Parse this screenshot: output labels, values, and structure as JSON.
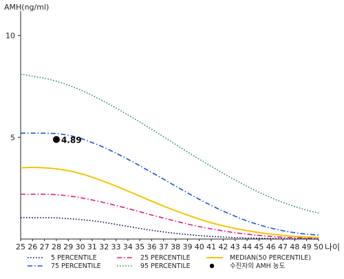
{
  "chart_data": {
    "type": "line",
    "ylabel": "AMH(ng/ml)",
    "xlabel": "나이",
    "x": [
      25,
      26,
      27,
      28,
      29,
      30,
      31,
      32,
      33,
      34,
      35,
      36,
      37,
      38,
      39,
      40,
      41,
      42,
      43,
      44,
      45,
      46,
      47,
      48,
      49,
      50
    ],
    "xlim": [
      25,
      50
    ],
    "ylim": [
      0,
      11
    ],
    "yticks": [
      5,
      10
    ],
    "grid": false,
    "series": [
      {
        "name": "5 PERCENTILE",
        "color": "#0a0a5a",
        "dash": "dotted",
        "values": [
          1.05,
          1.05,
          1.05,
          1.04,
          1.0,
          0.96,
          0.9,
          0.82,
          0.72,
          0.62,
          0.52,
          0.43,
          0.35,
          0.28,
          0.22,
          0.17,
          0.13,
          0.1,
          0.07,
          0.05,
          0.04,
          0.03,
          0.02,
          0.01,
          0.01,
          0.0
        ]
      },
      {
        "name": "25 PERCENTILE",
        "color": "#e0177a",
        "dash": "dashdot",
        "values": [
          2.2,
          2.2,
          2.2,
          2.18,
          2.12,
          2.03,
          1.92,
          1.79,
          1.65,
          1.5,
          1.34,
          1.18,
          1.03,
          0.88,
          0.74,
          0.61,
          0.5,
          0.4,
          0.31,
          0.24,
          0.18,
          0.13,
          0.09,
          0.07,
          0.05,
          0.03
        ]
      },
      {
        "name": "MEDIAN(50 PERCENTILE)",
        "color": "#f5c400",
        "dash": "solid",
        "values": [
          3.5,
          3.52,
          3.5,
          3.45,
          3.36,
          3.22,
          3.04,
          2.83,
          2.6,
          2.36,
          2.11,
          1.86,
          1.62,
          1.39,
          1.18,
          0.98,
          0.8,
          0.65,
          0.52,
          0.41,
          0.32,
          0.24,
          0.18,
          0.13,
          0.1,
          0.08
        ]
      },
      {
        "name": "75 PERCENTILE",
        "color": "#1c4fd6",
        "dash": "dashdot",
        "values": [
          5.2,
          5.2,
          5.2,
          5.18,
          5.1,
          4.95,
          4.74,
          4.5,
          4.22,
          3.92,
          3.6,
          3.27,
          2.94,
          2.6,
          2.27,
          1.95,
          1.65,
          1.37,
          1.12,
          0.89,
          0.7,
          0.54,
          0.41,
          0.31,
          0.24,
          0.2
        ]
      },
      {
        "name": "95 PERCENTILE",
        "color": "#2a8f4e",
        "dash": "dotted",
        "values": [
          8.1,
          8.0,
          7.9,
          7.75,
          7.56,
          7.33,
          7.06,
          6.76,
          6.44,
          6.1,
          5.75,
          5.39,
          5.02,
          4.65,
          4.28,
          3.92,
          3.57,
          3.23,
          2.9,
          2.59,
          2.3,
          2.04,
          1.8,
          1.6,
          1.42,
          1.28
        ]
      }
    ],
    "point": {
      "label": "수진자의 AMH 농도",
      "x": 28,
      "y": 4.89,
      "value_label": "4.89",
      "color": "#000000"
    },
    "legend": {
      "position": "bottom",
      "items": [
        {
          "label": "5 PERCENTILE",
          "series": 0
        },
        {
          "label": "25 PERCENTILE",
          "series": 1
        },
        {
          "label": "MEDIAN(50 PERCENTILE)",
          "series": 2
        },
        {
          "label": "75 PERCENTILE",
          "series": 3
        },
        {
          "label": "95 PERCENTILE",
          "series": 4
        },
        {
          "label": "수진자의 AMH 농도",
          "marker": "point"
        }
      ]
    }
  }
}
